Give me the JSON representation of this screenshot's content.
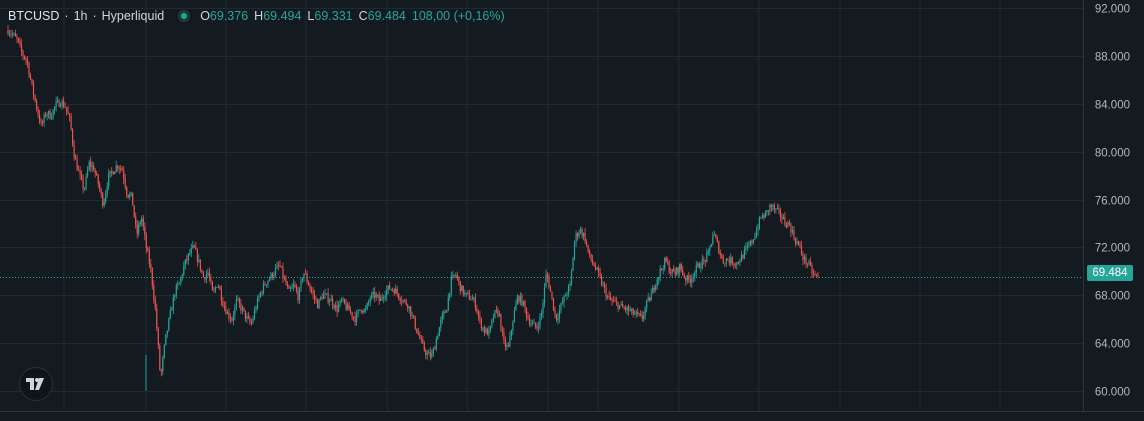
{
  "header": {
    "symbol": "BTCUSD",
    "sep1": "·",
    "interval": "1h",
    "sep2": "·",
    "exchange": "Hyperliquid",
    "o_label": "O",
    "o_value": "69.376",
    "h_label": "H",
    "h_value": "69.494",
    "l_label": "L",
    "l_value": "69.331",
    "c_label": "C",
    "c_value": "69.484",
    "change": "108,00 (+0,16%)"
  },
  "last_price_label": "69.484",
  "colors": {
    "up": "#26a69a",
    "down": "#ef5350",
    "background": "#131b21",
    "grid": "#1f2a30"
  },
  "logo_icon": "tradingview-logo-icon",
  "chart_data": {
    "type": "line",
    "title": "",
    "series": [
      {
        "values": [
          90200,
          89800,
          89300,
          88200,
          87600,
          85500,
          83700,
          82100,
          83300,
          83000,
          83900,
          84200,
          83800,
          82600,
          79500,
          78000,
          76800,
          79000,
          78600,
          77200,
          75600,
          77800,
          78400,
          78900,
          78500,
          76500,
          76200,
          73000,
          74600,
          72000,
          70000,
          66500,
          61000,
          64200,
          66300,
          68200,
          69000,
          70500,
          71400,
          72000,
          70800,
          69500,
          69900,
          68000,
          69100,
          67500,
          66500,
          66000,
          67500,
          66900,
          66100,
          65500,
          67000,
          68200,
          69000,
          69500,
          70000,
          70500,
          69200,
          68200,
          68800,
          67800,
          70000,
          69000,
          68000,
          67200,
          68000,
          67800,
          67500,
          66800,
          67500,
          67000,
          66500,
          66000,
          67000,
          66600,
          67800,
          68000,
          67500,
          68200,
          68600,
          68500,
          68000,
          67500,
          67200,
          66000,
          64800,
          63700,
          63000,
          62900,
          64500,
          66000,
          66800,
          69200,
          69700,
          68600,
          68000,
          67800,
          67400,
          65800,
          65000,
          64800,
          66400,
          66600,
          64000,
          63500,
          66000,
          67900,
          67400,
          66200,
          65500,
          65300,
          66500,
          69900,
          68000,
          66000,
          67000,
          68000,
          68800,
          72800,
          73500,
          72900,
          71200,
          70500,
          69600,
          68600,
          67700,
          67400,
          67200,
          66900,
          66800,
          66500,
          66300,
          66000,
          67200,
          68000,
          69200,
          70100,
          70900,
          70000,
          69800,
          70400,
          69500,
          69200,
          69900,
          70500,
          70800,
          71400,
          73200,
          72100,
          70800,
          71000,
          70800,
          70700,
          71200,
          71800,
          72400,
          73300,
          74500,
          74700,
          75500,
          75100,
          74800,
          74100,
          73900,
          72800,
          72100,
          71000,
          70600,
          69700,
          69484
        ]
      }
    ],
    "ylim": [
      58300,
      92700
    ],
    "y_ticks": [
      "92.000",
      "88.000",
      "84.000",
      "80.000",
      "76.000",
      "72.000",
      "68.000",
      "64.000",
      "60.000"
    ],
    "y_tick_values": [
      92000,
      88000,
      84000,
      80000,
      76000,
      72000,
      68000,
      64000,
      60000
    ],
    "last_price": 69484,
    "grid": true
  }
}
